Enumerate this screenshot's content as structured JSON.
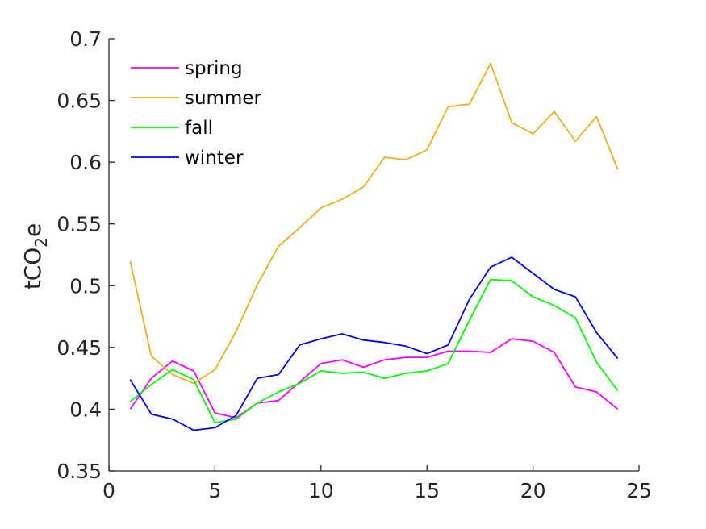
{
  "chart_data": {
    "type": "line",
    "title": "",
    "xlabel": "",
    "ylabel": {
      "main": "tCO",
      "sub": "2",
      "tail": "e"
    },
    "xlim": [
      0,
      25
    ],
    "ylim": [
      0.35,
      0.7
    ],
    "xticks": [
      0,
      5,
      10,
      15,
      20,
      25
    ],
    "xtick_labels": [
      "0",
      "5",
      "10",
      "15",
      "20",
      "25"
    ],
    "yticks": [
      0.35,
      0.4,
      0.45,
      0.5,
      0.55,
      0.6,
      0.65,
      0.7
    ],
    "ytick_labels": [
      "0.35",
      "0.4",
      "0.45",
      "0.5",
      "0.55",
      "0.6",
      "0.65",
      "0.7"
    ],
    "grid": false,
    "legend_position": "top-left",
    "x": [
      1,
      2,
      3,
      4,
      5,
      6,
      7,
      8,
      9,
      10,
      11,
      12,
      13,
      14,
      15,
      16,
      17,
      18,
      19,
      20,
      21,
      22,
      23,
      24
    ],
    "series": [
      {
        "name": "spring",
        "color": "#ff00ff",
        "values": [
          0.4,
          0.425,
          0.439,
          0.431,
          0.397,
          0.393,
          0.405,
          0.407,
          0.422,
          0.437,
          0.44,
          0.434,
          0.44,
          0.442,
          0.442,
          0.447,
          0.447,
          0.446,
          0.457,
          0.455,
          0.446,
          0.418,
          0.414,
          0.4
        ]
      },
      {
        "name": "summer",
        "color": "#edb120",
        "values": [
          0.52,
          0.443,
          0.428,
          0.421,
          0.432,
          0.463,
          0.501,
          0.532,
          0.547,
          0.563,
          0.57,
          0.58,
          0.604,
          0.602,
          0.61,
          0.645,
          0.647,
          0.68,
          0.632,
          0.623,
          0.641,
          0.617,
          0.637,
          0.594
        ]
      },
      {
        "name": "fall",
        "color": "#00ff00",
        "values": [
          0.406,
          0.42,
          0.432,
          0.424,
          0.389,
          0.392,
          0.405,
          0.414,
          0.421,
          0.431,
          0.429,
          0.43,
          0.425,
          0.429,
          0.431,
          0.437,
          0.472,
          0.505,
          0.504,
          0.491,
          0.484,
          0.474,
          0.438,
          0.415
        ]
      },
      {
        "name": "winter",
        "color": "#0000ff",
        "values": [
          0.424,
          0.396,
          0.392,
          0.383,
          0.385,
          0.395,
          0.425,
          0.428,
          0.452,
          0.457,
          0.461,
          0.456,
          0.454,
          0.451,
          0.445,
          0.452,
          0.489,
          0.515,
          0.523,
          0.51,
          0.497,
          0.491,
          0.462,
          0.441
        ]
      }
    ]
  }
}
